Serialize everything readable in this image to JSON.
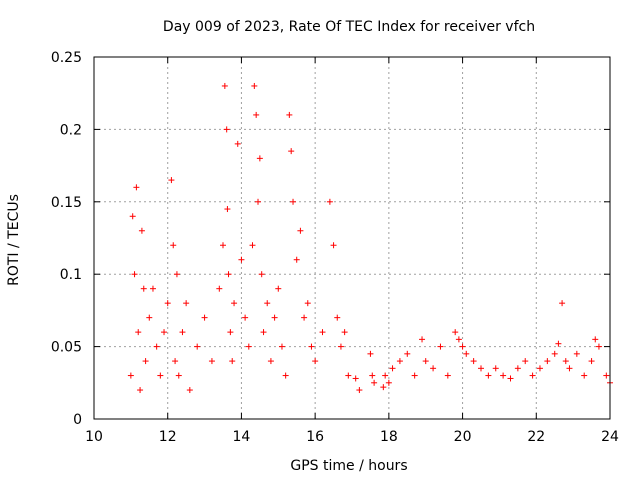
{
  "chart_data": {
    "type": "scatter",
    "title": "Day 009 of 2023, Rate Of TEC Index for receiver vfch",
    "xlabel": "GPS time / hours",
    "ylabel": "ROTI / TECUs",
    "xlim": [
      10,
      24
    ],
    "ylim": [
      0,
      0.25
    ],
    "x_ticks": [
      10,
      12,
      14,
      16,
      18,
      20,
      22,
      24
    ],
    "x_tick_labels": [
      "10",
      "12",
      "14",
      "16",
      "18",
      "20",
      "22",
      "24"
    ],
    "y_ticks": [
      0,
      0.05,
      0.1,
      0.15,
      0.2,
      0.25
    ],
    "y_tick_labels": [
      "0",
      "0.05",
      "0.1",
      "0.15",
      "0.2",
      "0.25"
    ],
    "grid": true,
    "marker": "+",
    "marker_color": "#ff0000",
    "series": [
      {
        "name": "ROTI",
        "x": [
          11.0,
          11.05,
          11.1,
          11.15,
          11.2,
          11.25,
          11.3,
          11.35,
          11.4,
          11.5,
          11.6,
          11.7,
          11.8,
          11.9,
          12.0,
          12.1,
          12.15,
          12.2,
          12.25,
          12.3,
          12.4,
          12.5,
          12.6,
          12.8,
          13.0,
          13.2,
          13.4,
          13.5,
          13.55,
          13.6,
          13.62,
          13.65,
          13.7,
          13.75,
          13.8,
          13.9,
          14.0,
          14.1,
          14.2,
          14.3,
          14.35,
          14.4,
          14.45,
          14.5,
          14.55,
          14.6,
          14.7,
          14.8,
          14.9,
          15.0,
          15.1,
          15.2,
          15.3,
          15.35,
          15.4,
          15.5,
          15.6,
          15.7,
          15.8,
          15.9,
          16.0,
          16.2,
          16.4,
          16.5,
          16.6,
          16.7,
          16.8,
          16.9,
          17.1,
          17.2,
          17.5,
          17.55,
          17.6,
          17.85,
          17.9,
          18.0,
          18.1,
          18.3,
          18.5,
          18.7,
          18.9,
          19.0,
          19.2,
          19.4,
          19.6,
          19.8,
          19.9,
          20.0,
          20.1,
          20.3,
          20.5,
          20.7,
          20.9,
          21.1,
          21.3,
          21.5,
          21.7,
          21.9,
          22.1,
          22.3,
          22.5,
          22.6,
          22.7,
          22.8,
          22.9,
          23.1,
          23.3,
          23.5,
          23.6,
          23.7,
          23.9,
          24.0
        ],
        "y": [
          0.03,
          0.14,
          0.1,
          0.16,
          0.06,
          0.02,
          0.13,
          0.09,
          0.04,
          0.07,
          0.09,
          0.05,
          0.03,
          0.06,
          0.08,
          0.165,
          0.12,
          0.04,
          0.1,
          0.03,
          0.06,
          0.08,
          0.02,
          0.05,
          0.07,
          0.04,
          0.09,
          0.12,
          0.23,
          0.2,
          0.145,
          0.1,
          0.06,
          0.04,
          0.08,
          0.19,
          0.11,
          0.07,
          0.05,
          0.12,
          0.23,
          0.21,
          0.15,
          0.18,
          0.1,
          0.06,
          0.08,
          0.04,
          0.07,
          0.09,
          0.05,
          0.03,
          0.21,
          0.185,
          0.15,
          0.11,
          0.13,
          0.07,
          0.08,
          0.05,
          0.04,
          0.06,
          0.15,
          0.12,
          0.07,
          0.05,
          0.06,
          0.03,
          0.028,
          0.02,
          0.045,
          0.03,
          0.025,
          0.022,
          0.03,
          0.025,
          0.035,
          0.04,
          0.045,
          0.03,
          0.055,
          0.04,
          0.035,
          0.05,
          0.03,
          0.06,
          0.055,
          0.05,
          0.045,
          0.04,
          0.035,
          0.03,
          0.035,
          0.03,
          0.028,
          0.035,
          0.04,
          0.03,
          0.035,
          0.04,
          0.045,
          0.052,
          0.08,
          0.04,
          0.035,
          0.045,
          0.03,
          0.04,
          0.055,
          0.05,
          0.03,
          0.025
        ]
      }
    ]
  }
}
